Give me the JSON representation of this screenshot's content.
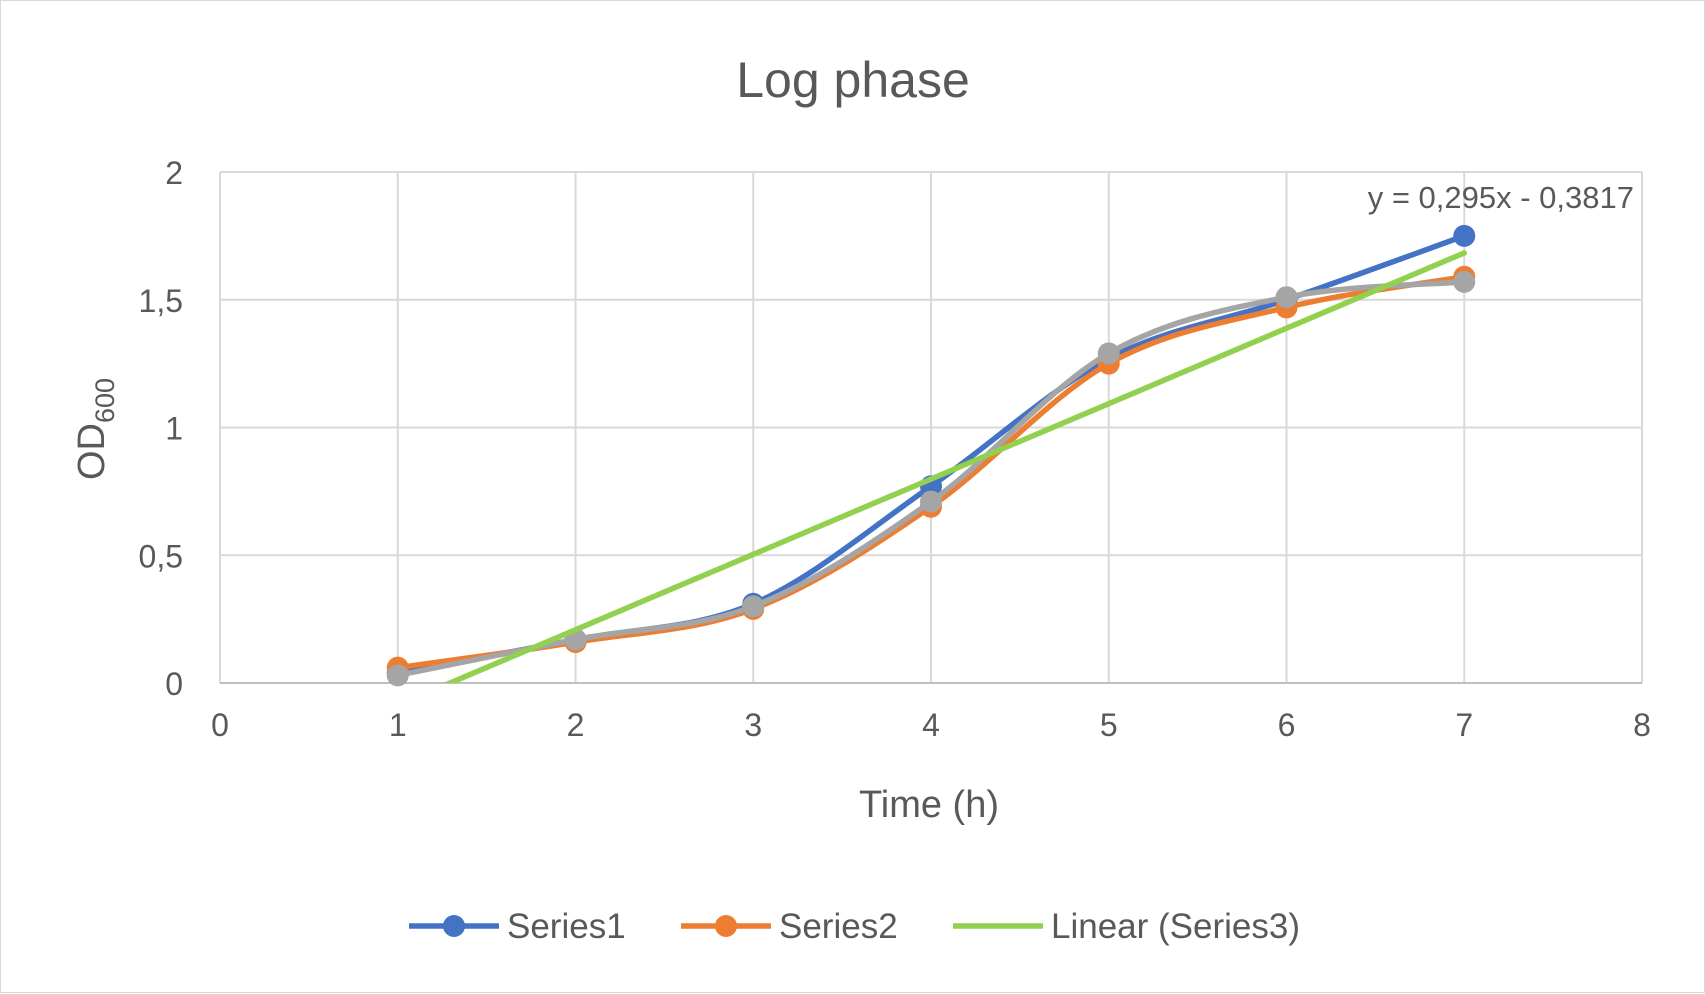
{
  "chart_data": {
    "type": "line",
    "title": "Log phase",
    "xlabel": "Time (h)",
    "ylabel": {
      "main": "OD",
      "subscript": "600"
    },
    "xlim": [
      0,
      8
    ],
    "ylim": [
      0,
      2
    ],
    "x_ticks": [
      "0",
      "1",
      "2",
      "3",
      "4",
      "5",
      "6",
      "7",
      "8"
    ],
    "y_ticks": [
      "0",
      "0,5",
      "1",
      "1,5",
      "2"
    ],
    "grid": true,
    "legend_position": "bottom",
    "x": [
      1,
      2,
      3,
      4,
      5,
      6,
      7
    ],
    "series": [
      {
        "name": "Series1",
        "color": "#4472c4",
        "marker": true,
        "smooth": true,
        "values": [
          0.04,
          0.17,
          0.31,
          0.77,
          1.27,
          1.5,
          1.75
        ]
      },
      {
        "name": "Series2",
        "color": "#ed7d31",
        "marker": true,
        "smooth": true,
        "values": [
          0.06,
          0.16,
          0.29,
          0.69,
          1.25,
          1.47,
          1.59
        ]
      },
      {
        "name": "",
        "color": "#a5a5a5",
        "marker": true,
        "smooth": true,
        "values": [
          0.03,
          0.17,
          0.3,
          0.71,
          1.29,
          1.51,
          1.57
        ]
      }
    ],
    "trendline": {
      "name": "Linear (Series3)",
      "color": "#92d050",
      "slope": 0.295,
      "intercept": -0.3817,
      "x_range": [
        1,
        7
      ],
      "equation": "y = 0,295x - 0,3817"
    }
  }
}
